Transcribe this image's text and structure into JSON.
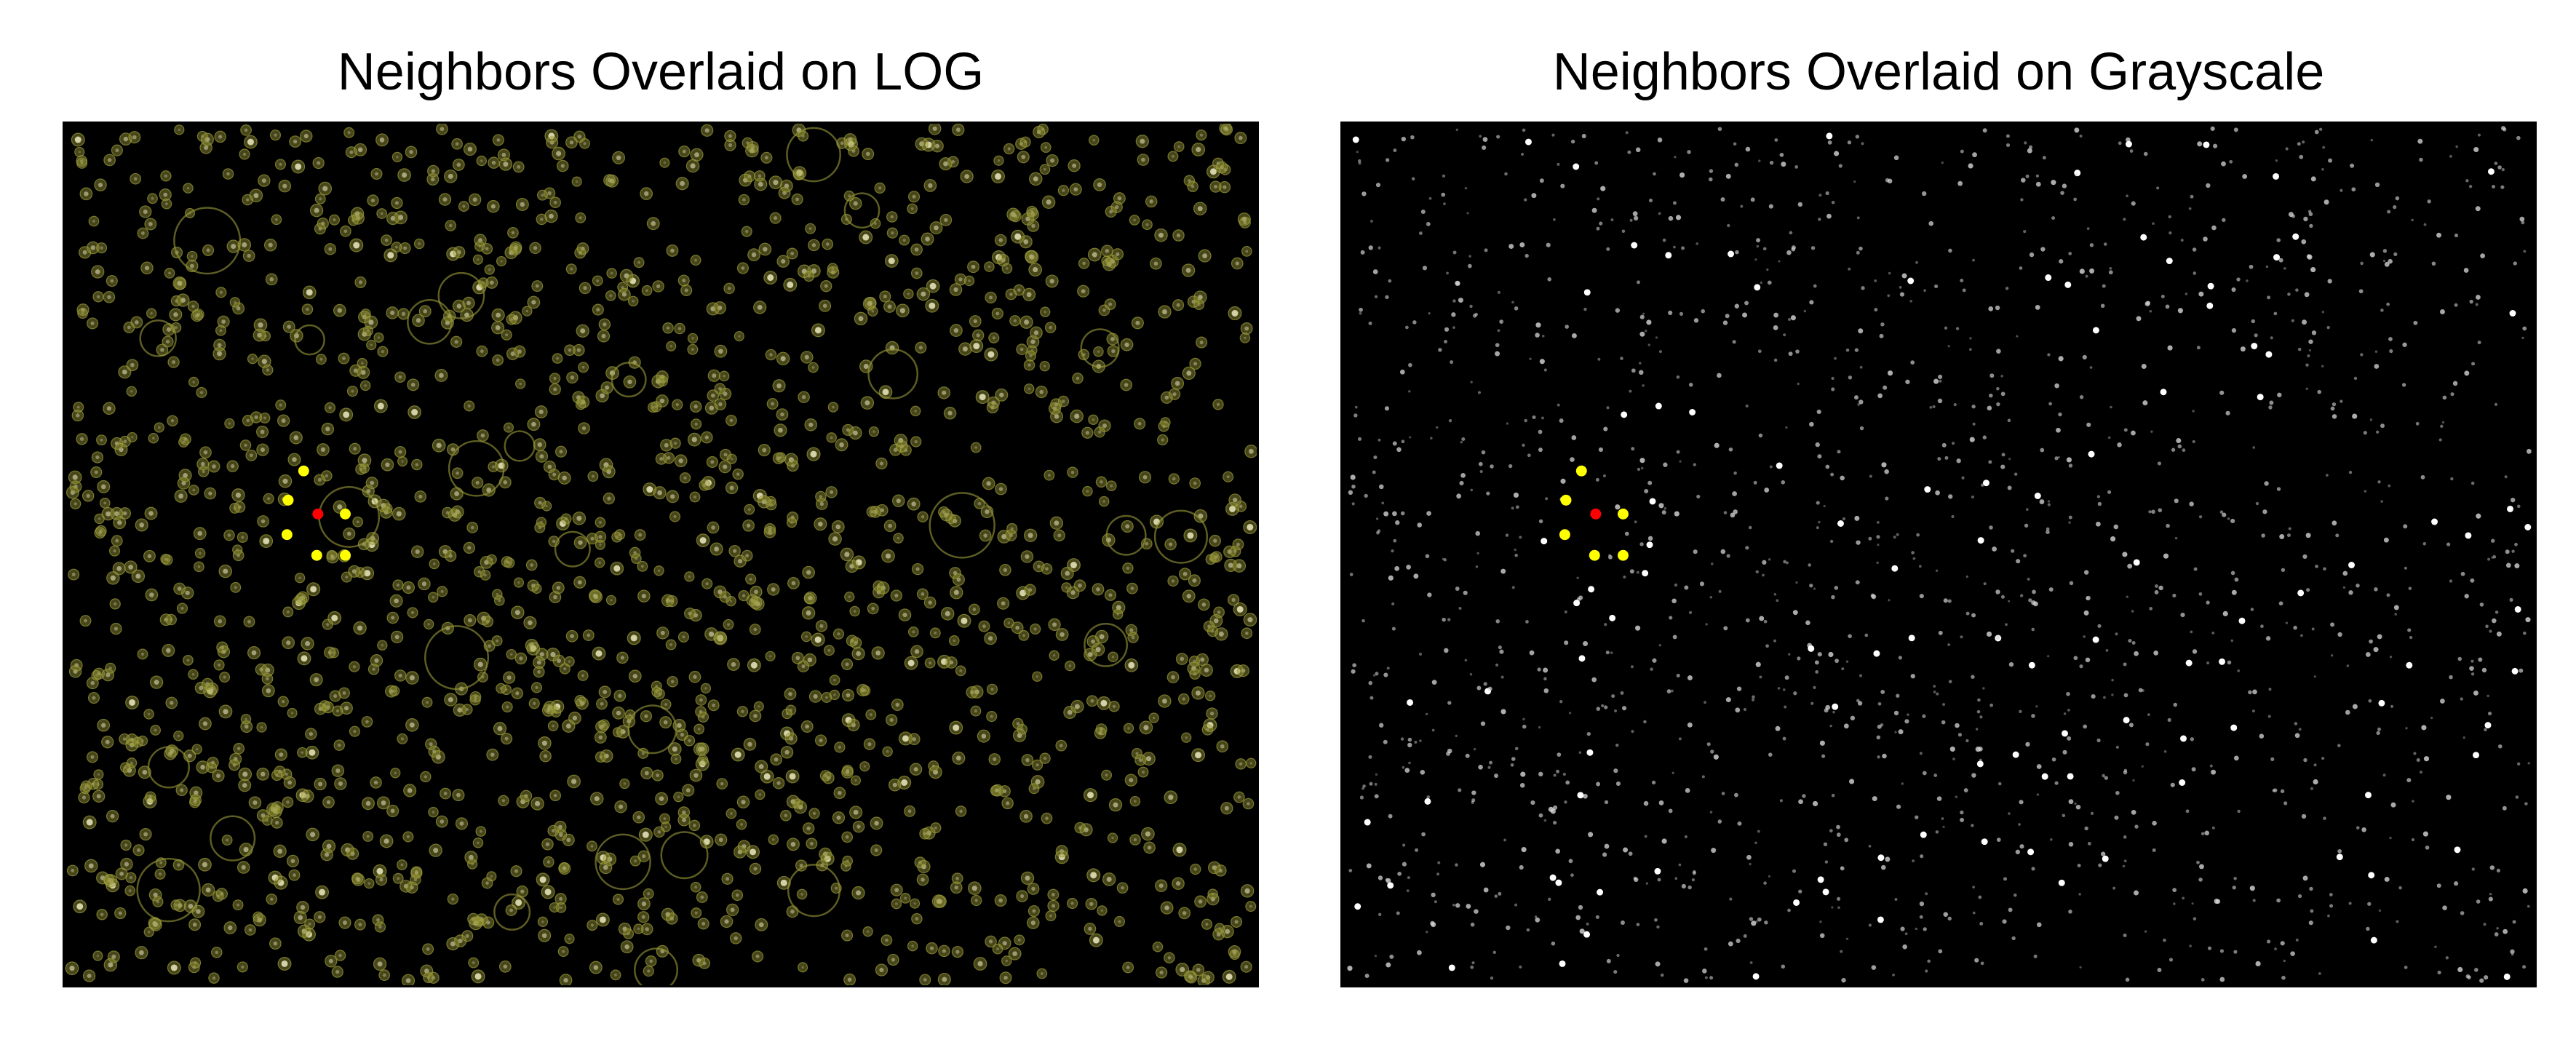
{
  "figure": {
    "panels": [
      {
        "id": "log",
        "title": "Neighbors Overlaid on LOG",
        "background": "LoG-filtered fluorescence image with detected blobs circled",
        "blob_circle_color": "#9b9b3a",
        "show_blob_circles": true
      },
      {
        "id": "grayscale",
        "title": "Neighbors Overlaid on Grayscale",
        "background": "grayscale fluorescence image",
        "show_blob_circles": false
      }
    ],
    "colors": {
      "spot": "#d8d8d8",
      "bright_spot": "#ffffff",
      "center_marker": "#ff0000",
      "neighbor_marker": "#ffff00",
      "image_background": "#000000"
    },
    "center_point": [
      0.212,
      0.453
    ],
    "neighbors": [
      [
        0.2,
        0.403
      ],
      [
        0.187,
        0.437
      ],
      [
        0.235,
        0.453
      ],
      [
        0.186,
        0.477
      ],
      [
        0.211,
        0.501
      ],
      [
        0.235,
        0.501
      ]
    ]
  }
}
